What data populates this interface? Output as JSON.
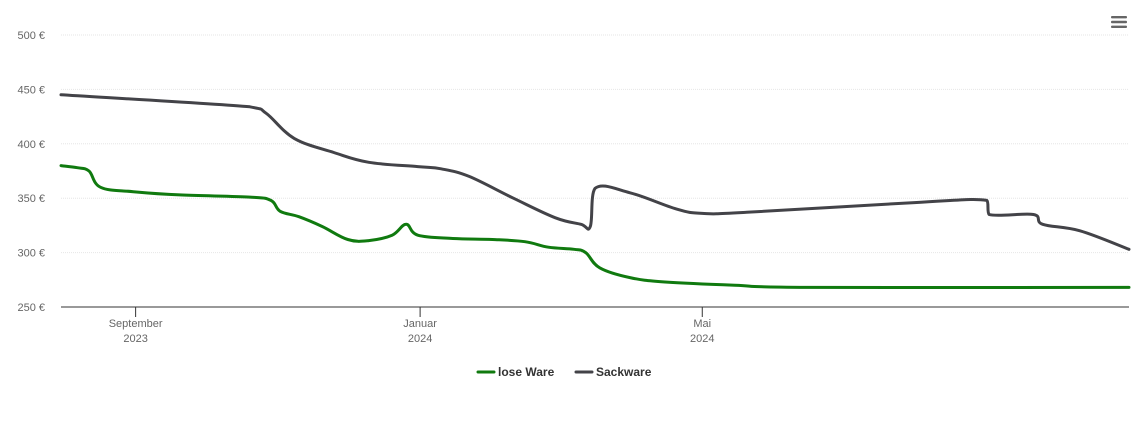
{
  "chart_data": {
    "type": "line",
    "title": "",
    "xlabel": "",
    "ylabel": "",
    "ylim": [
      250,
      500
    ],
    "y_ticks": [
      {
        "value": 250,
        "label": "250 €"
      },
      {
        "value": 300,
        "label": "300 €"
      },
      {
        "value": 350,
        "label": "350 €"
      },
      {
        "value": 400,
        "label": "400 €"
      },
      {
        "value": 450,
        "label": "450 €"
      },
      {
        "value": 500,
        "label": "500 €"
      }
    ],
    "xlim": [
      "2023-07-31",
      "2024-10-31"
    ],
    "x_ticks": [
      {
        "date": "2023-09-01",
        "label": "September",
        "sublabel": "2023"
      },
      {
        "date": "2024-01-01",
        "label": "Januar",
        "sublabel": "2024"
      },
      {
        "date": "2024-05-01",
        "label": "Mai",
        "sublabel": "2024"
      }
    ],
    "grid": true,
    "legend_position": "bottom-center",
    "series": [
      {
        "name": "lose Ware",
        "color": "#107a0f",
        "points": [
          {
            "date": "2023-07-31",
            "value": 380
          },
          {
            "date": "2023-08-07",
            "value": 378
          },
          {
            "date": "2023-08-12",
            "value": 375
          },
          {
            "date": "2023-08-17",
            "value": 360
          },
          {
            "date": "2023-08-31",
            "value": 356
          },
          {
            "date": "2023-09-20",
            "value": 353
          },
          {
            "date": "2023-10-20",
            "value": 351
          },
          {
            "date": "2023-10-29",
            "value": 348
          },
          {
            "date": "2023-11-02",
            "value": 338
          },
          {
            "date": "2023-11-10",
            "value": 333
          },
          {
            "date": "2023-11-20",
            "value": 324
          },
          {
            "date": "2023-12-01",
            "value": 312
          },
          {
            "date": "2023-12-10",
            "value": 311
          },
          {
            "date": "2023-12-20",
            "value": 316
          },
          {
            "date": "2023-12-26",
            "value": 326
          },
          {
            "date": "2023-12-31",
            "value": 316
          },
          {
            "date": "2024-01-15",
            "value": 313
          },
          {
            "date": "2024-02-01",
            "value": 312
          },
          {
            "date": "2024-02-15",
            "value": 310
          },
          {
            "date": "2024-02-25",
            "value": 305
          },
          {
            "date": "2024-03-07",
            "value": 303
          },
          {
            "date": "2024-03-12",
            "value": 300
          },
          {
            "date": "2024-03-18",
            "value": 286
          },
          {
            "date": "2024-03-31",
            "value": 277
          },
          {
            "date": "2024-04-15",
            "value": 273
          },
          {
            "date": "2024-05-15",
            "value": 270
          },
          {
            "date": "2024-06-15",
            "value": 268
          },
          {
            "date": "2024-10-31",
            "value": 268
          }
        ]
      },
      {
        "name": "Sackware",
        "color": "#434348",
        "points": [
          {
            "date": "2023-07-31",
            "value": 445
          },
          {
            "date": "2023-10-20",
            "value": 434
          },
          {
            "date": "2023-10-27",
            "value": 428
          },
          {
            "date": "2023-11-08",
            "value": 405
          },
          {
            "date": "2023-11-25",
            "value": 392
          },
          {
            "date": "2023-12-10",
            "value": 383
          },
          {
            "date": "2023-12-31",
            "value": 379
          },
          {
            "date": "2024-01-10",
            "value": 377
          },
          {
            "date": "2024-01-22",
            "value": 370
          },
          {
            "date": "2024-02-10",
            "value": 350
          },
          {
            "date": "2024-02-28",
            "value": 332
          },
          {
            "date": "2024-03-10",
            "value": 326
          },
          {
            "date": "2024-03-14",
            "value": 324
          },
          {
            "date": "2024-03-16",
            "value": 359
          },
          {
            "date": "2024-03-31",
            "value": 355
          },
          {
            "date": "2024-04-20",
            "value": 340
          },
          {
            "date": "2024-05-01",
            "value": 336
          },
          {
            "date": "2024-05-20",
            "value": 337
          },
          {
            "date": "2024-07-31",
            "value": 346
          },
          {
            "date": "2024-08-31",
            "value": 348
          },
          {
            "date": "2024-09-01",
            "value": 335
          },
          {
            "date": "2024-09-20",
            "value": 335
          },
          {
            "date": "2024-09-24",
            "value": 326
          },
          {
            "date": "2024-10-10",
            "value": 320
          },
          {
            "date": "2024-10-31",
            "value": 303
          }
        ]
      }
    ]
  },
  "toolbar": {
    "menu_icon": "hamburger-menu-icon"
  }
}
